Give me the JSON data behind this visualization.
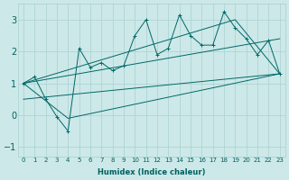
{
  "xlabel": "Humidex (Indice chaleur)",
  "bg_color": "#cce8e8",
  "line_color": "#006868",
  "xlim": [
    -0.5,
    23.5
  ],
  "ylim": [
    -1.3,
    3.5
  ],
  "xticks": [
    0,
    1,
    2,
    3,
    4,
    5,
    6,
    7,
    8,
    9,
    10,
    11,
    12,
    13,
    14,
    15,
    16,
    17,
    18,
    19,
    20,
    21,
    22,
    23
  ],
  "yticks": [
    -1,
    0,
    1,
    2,
    3
  ],
  "data_line": {
    "x": [
      0,
      1,
      2,
      3,
      4,
      5,
      6,
      7,
      8,
      9,
      10,
      11,
      12,
      13,
      14,
      15,
      16,
      17,
      18,
      19,
      20,
      21,
      22,
      23
    ],
    "y": [
      1.0,
      1.2,
      0.5,
      -0.05,
      -0.5,
      2.1,
      1.5,
      1.65,
      1.4,
      1.55,
      2.5,
      3.0,
      1.9,
      2.1,
      3.15,
      2.5,
      2.2,
      2.2,
      3.25,
      2.75,
      2.4,
      1.9,
      2.35,
      1.3
    ]
  },
  "parallelogram": {
    "x": [
      0,
      19,
      23,
      4,
      0
    ],
    "y": [
      1.0,
      3.0,
      1.3,
      -0.1,
      1.0
    ]
  },
  "trend_upper": {
    "x": [
      0,
      23
    ],
    "y": [
      1.0,
      2.4
    ]
  },
  "trend_lower": {
    "x": [
      0,
      23
    ],
    "y": [
      0.5,
      1.3
    ]
  },
  "grid_color": "#aad0d0",
  "font_color": "#006060"
}
